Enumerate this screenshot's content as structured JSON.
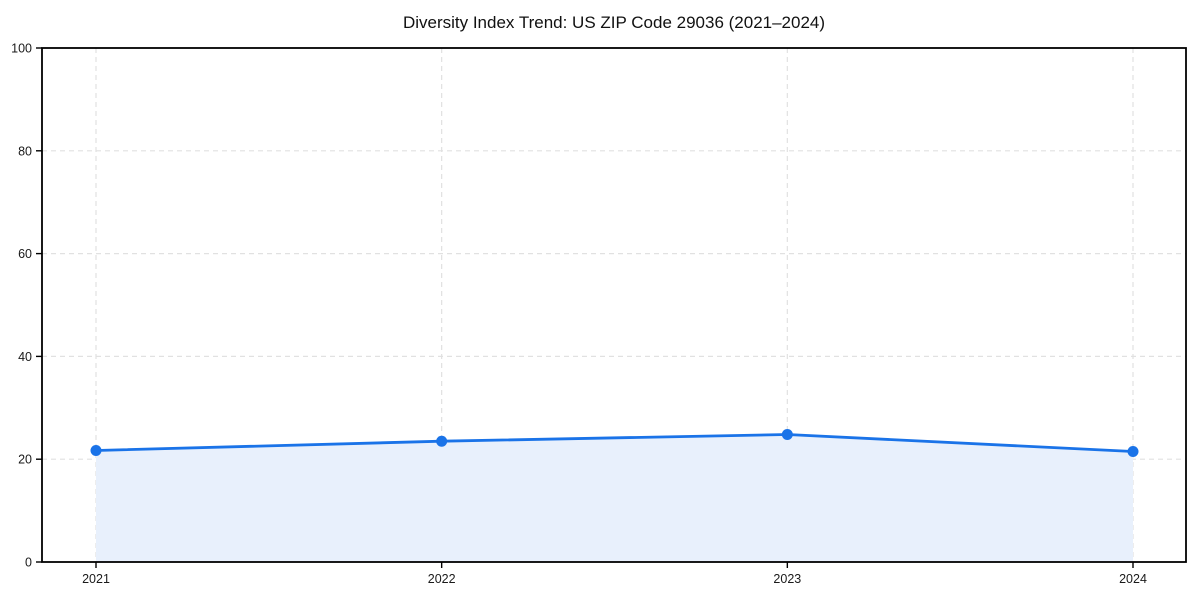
{
  "chart_data": {
    "type": "area",
    "title": "Diversity Index Trend: US ZIP Code 29036 (2021–2024)",
    "x": [
      2021,
      2022,
      2023,
      2024
    ],
    "xticklabels": [
      "2021",
      "2022",
      "2023",
      "2024"
    ],
    "values": [
      21.7,
      23.5,
      24.8,
      21.5
    ],
    "xlabel": "",
    "ylabel": "",
    "ylim": [
      0,
      100
    ],
    "yticks": [
      0,
      20,
      40,
      60,
      80,
      100
    ],
    "grid": true,
    "grid_style": "dashed",
    "legend": "none",
    "colors": {
      "line": "#1a73e8",
      "marker": "#1a73e8",
      "fill": "#e8f0fc",
      "gridline": "#e1e1e1",
      "spine": "#000000",
      "text": "#1a1a1a"
    }
  }
}
